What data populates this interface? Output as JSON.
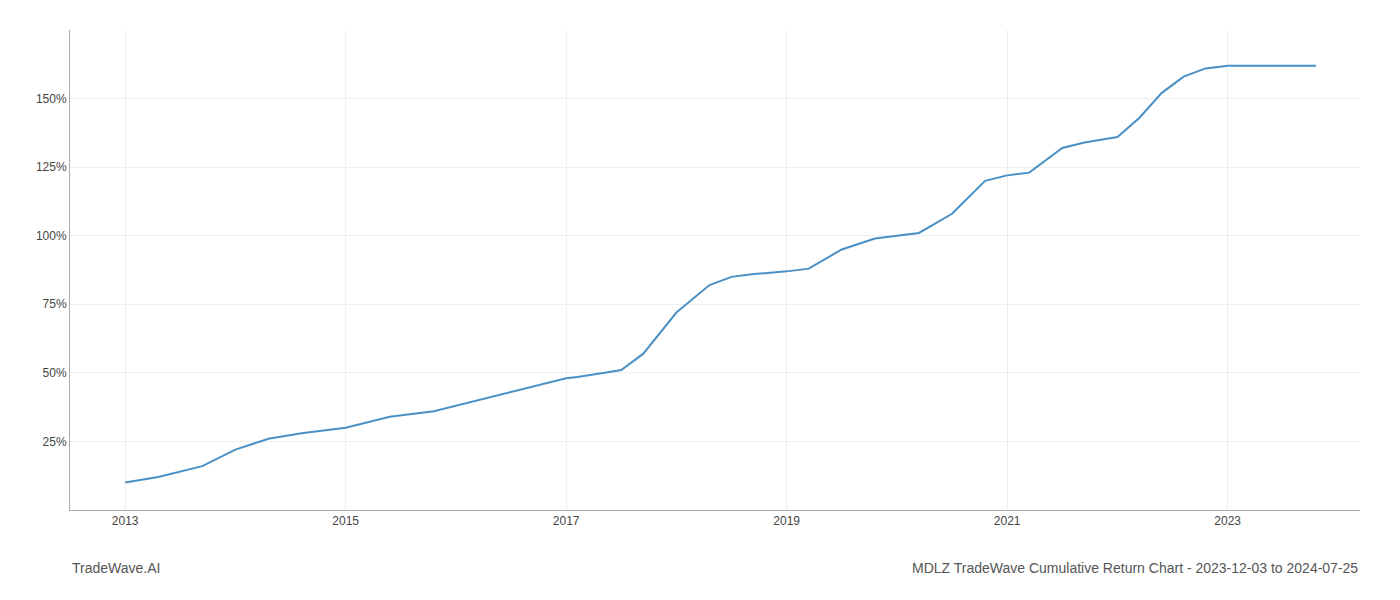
{
  "chart_data": {
    "type": "line",
    "title": "MDLZ TradeWave Cumulative Return Chart - 2023-12-03 to 2024-07-25",
    "annotations": [
      "TradeWave.AI"
    ],
    "x": [
      2013.0,
      2013.3,
      2013.7,
      2014.0,
      2014.3,
      2014.6,
      2015.0,
      2015.4,
      2015.8,
      2016.0,
      2016.3,
      2016.6,
      2016.9,
      2017.0,
      2017.1,
      2017.2,
      2017.35,
      2017.5,
      2017.7,
      2018.0,
      2018.3,
      2018.5,
      2018.7,
      2019.0,
      2019.2,
      2019.5,
      2019.8,
      2020.0,
      2020.2,
      2020.5,
      2020.8,
      2021.0,
      2021.2,
      2021.5,
      2021.7,
      2022.0,
      2022.2,
      2022.4,
      2022.6,
      2022.8,
      2023.0,
      2023.3,
      2023.6,
      2023.8
    ],
    "values": [
      10,
      12,
      16,
      22,
      26,
      28,
      30,
      34,
      36,
      38,
      41,
      44,
      47,
      48,
      48.5,
      49,
      50,
      51,
      57,
      72,
      82,
      85,
      86,
      87,
      88,
      95,
      99,
      100,
      101,
      108,
      120,
      122,
      123,
      132,
      134,
      136,
      143,
      152,
      158,
      161,
      162,
      162,
      162,
      162
    ],
    "color": "#4a90c4",
    "xlim": [
      2012.5,
      2024.2
    ],
    "xticks": [
      2013,
      2015,
      2017,
      2019,
      2021,
      2023
    ],
    "ylim": [
      0,
      175
    ],
    "yticks": [
      {
        "value": 25,
        "label": "25%"
      },
      {
        "value": 50,
        "label": "50%"
      },
      {
        "value": 75,
        "label": "75%"
      },
      {
        "value": 100,
        "label": "100%"
      },
      {
        "value": 125,
        "label": "125%"
      },
      {
        "value": 150,
        "label": "150%"
      }
    ],
    "grid": true
  }
}
